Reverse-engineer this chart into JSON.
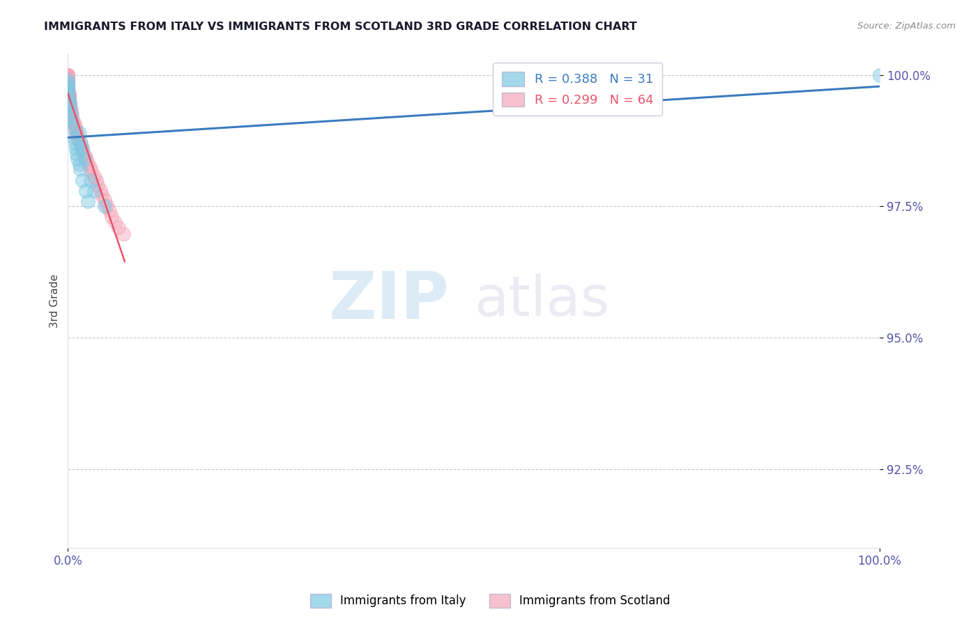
{
  "title": "IMMIGRANTS FROM ITALY VS IMMIGRANTS FROM SCOTLAND 3RD GRADE CORRELATION CHART",
  "source": "Source: ZipAtlas.com",
  "ylabel": "3rd Grade",
  "legend_italy": "Immigrants from Italy",
  "legend_scotland": "Immigrants from Scotland",
  "R_italy": 0.388,
  "N_italy": 31,
  "R_scotland": 0.299,
  "N_scotland": 64,
  "color_italy": "#7ec8e3",
  "color_scotland": "#f4a7b9",
  "color_italy_line": "#3a7bbf",
  "color_scotland_line": "#e8546a",
  "italy_x": [
    0.0,
    0.0,
    0.0,
    0.0,
    0.0,
    0.1,
    0.1,
    0.2,
    0.2,
    0.3,
    0.4,
    0.5,
    0.6,
    0.8,
    0.9,
    1.0,
    1.1,
    1.2,
    1.4,
    1.5,
    1.8,
    2.2,
    2.5,
    1.4,
    1.6,
    1.8,
    2.0,
    2.8,
    3.2,
    4.5,
    100.0
  ],
  "italy_y": [
    0.9985,
    0.998,
    0.9975,
    0.997,
    0.999,
    0.996,
    0.995,
    0.9945,
    0.994,
    0.993,
    0.992,
    0.991,
    0.99,
    0.988,
    0.987,
    0.986,
    0.985,
    0.984,
    0.983,
    0.982,
    0.98,
    0.978,
    0.976,
    0.989,
    0.987,
    0.986,
    0.984,
    0.98,
    0.978,
    0.975,
    1.0
  ],
  "scotland_x": [
    0.0,
    0.0,
    0.0,
    0.0,
    0.0,
    0.0,
    0.0,
    0.0,
    0.0,
    0.0,
    0.0,
    0.0,
    0.0,
    0.0,
    0.0,
    0.0,
    0.0,
    0.0,
    0.0,
    0.0,
    0.1,
    0.1,
    0.1,
    0.1,
    0.1,
    0.1,
    0.2,
    0.2,
    0.2,
    0.3,
    0.3,
    0.4,
    0.4,
    0.5,
    0.5,
    0.6,
    0.7,
    0.8,
    0.9,
    1.0,
    1.1,
    1.2,
    1.3,
    1.5,
    1.6,
    1.8,
    1.9,
    2.1,
    2.3,
    2.5,
    2.7,
    2.9,
    3.2,
    3.5,
    3.7,
    4.0,
    4.2,
    4.5,
    4.8,
    5.1,
    5.4,
    5.8,
    6.2,
    6.8
  ],
  "scotland_y": [
    1.0,
    1.0,
    1.0,
    1.0,
    1.0,
    0.9998,
    0.9996,
    0.9994,
    0.9992,
    0.999,
    0.9988,
    0.9986,
    0.9984,
    0.9982,
    0.998,
    0.9978,
    0.9976,
    0.9973,
    0.9971,
    0.9968,
    0.9966,
    0.9963,
    0.996,
    0.9957,
    0.9954,
    0.9951,
    0.9948,
    0.9945,
    0.9941,
    0.9937,
    0.9934,
    0.993,
    0.9926,
    0.9922,
    0.9918,
    0.9914,
    0.9909,
    0.9905,
    0.99,
    0.9895,
    0.9889,
    0.9884,
    0.9878,
    0.9872,
    0.9866,
    0.986,
    0.9853,
    0.9846,
    0.9839,
    0.9831,
    0.9824,
    0.9816,
    0.9807,
    0.9799,
    0.979,
    0.9781,
    0.9772,
    0.9762,
    0.9752,
    0.9742,
    0.9731,
    0.972,
    0.9709,
    0.9697
  ],
  "xlim": [
    0.0,
    100.0
  ],
  "ylim": [
    0.91,
    1.004
  ],
  "yticks": [
    0.925,
    0.95,
    0.975,
    1.0
  ],
  "ytick_labels": [
    "92.5%",
    "95.0%",
    "97.5%",
    "100.0%"
  ],
  "xtick_positions": [
    0.0,
    100.0
  ],
  "xtick_labels": [
    "0.0%",
    "100.0%"
  ],
  "watermark_zip": "ZIP",
  "watermark_atlas": "atlas",
  "background_color": "#ffffff",
  "grid_color": "#c8c8d8",
  "title_color": "#1a1a2e",
  "source_color": "#888888",
  "ylabel_color": "#444444",
  "tick_color": "#5555aa"
}
